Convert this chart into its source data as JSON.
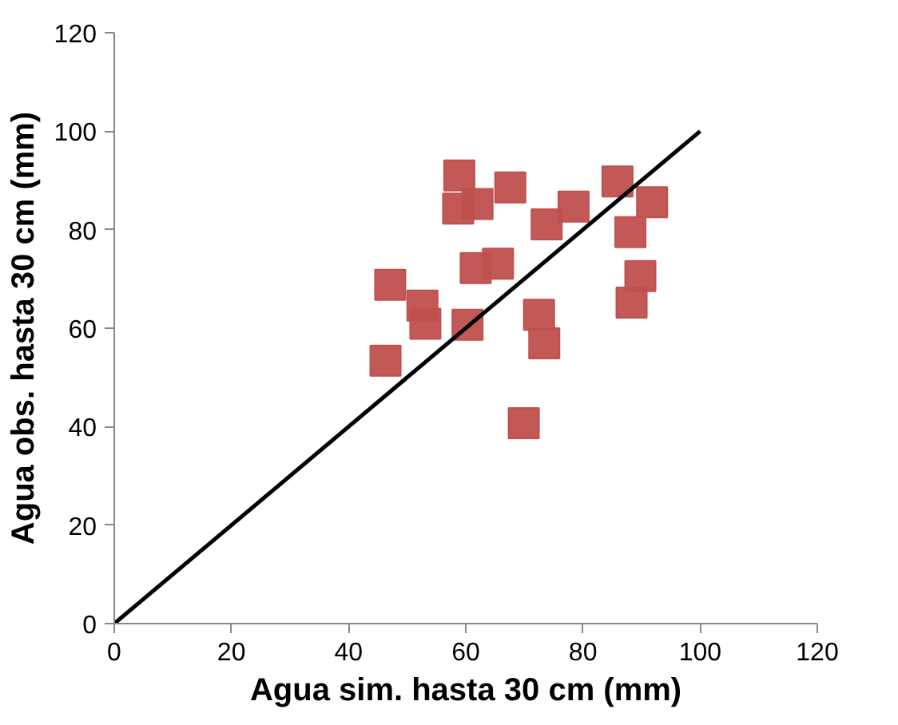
{
  "chart_data": {
    "type": "scatter",
    "xlabel": "Agua sim. hasta 30 cm (mm)",
    "ylabel": "Agua obs. hasta 30 cm (mm)",
    "xlim": [
      0,
      120
    ],
    "ylim": [
      0,
      120
    ],
    "xticks": [
      0,
      20,
      40,
      60,
      80,
      100,
      120
    ],
    "yticks": [
      0,
      20,
      40,
      60,
      80,
      100,
      120
    ],
    "grid": false,
    "series": [
      {
        "marker": "square",
        "color": "#c0504d",
        "x": [
          58.9,
          58.7,
          62.0,
          67.6,
          73.8,
          78.4,
          85.9,
          91.8,
          88.1,
          89.8,
          88.3,
          61.7,
          65.5,
          47.1,
          52.6,
          53.1,
          60.3,
          72.5,
          73.4,
          46.3,
          69.9
        ],
        "values": [
          91.0,
          84.3,
          85.2,
          88.6,
          81.1,
          84.7,
          89.8,
          85.6,
          79.5,
          70.6,
          65.2,
          72.2,
          73.1,
          68.8,
          64.6,
          60.9,
          60.7,
          62.7,
          56.9,
          53.4,
          40.7
        ]
      },
      {
        "type": "line",
        "marker": "none",
        "line_style": "solid",
        "color": "#000000",
        "x": [
          0,
          100
        ],
        "values": [
          0,
          100
        ]
      }
    ]
  }
}
